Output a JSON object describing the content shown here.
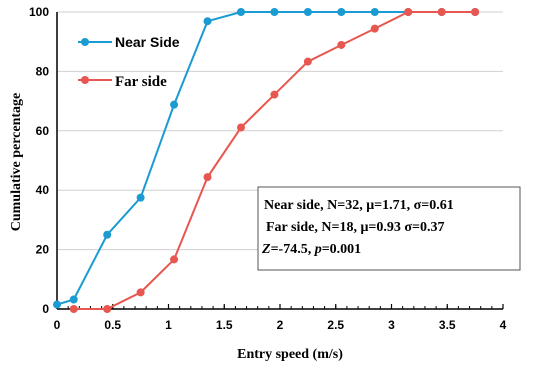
{
  "chart_data": {
    "type": "line",
    "xlabel": "Entry speed (m/s)",
    "ylabel": "Cumulative percentage",
    "xlim": [
      0,
      4
    ],
    "ylim": [
      0,
      100
    ],
    "x_ticks": [
      "0",
      "0.5",
      "1",
      "1.5",
      "2",
      "2.5",
      "3",
      "3.5",
      "4"
    ],
    "y_ticks": [
      "0",
      "20",
      "40",
      "60",
      "80",
      "100"
    ],
    "grid": "horizontal",
    "legend_position": "top-left",
    "series": [
      {
        "name": "Near Side",
        "color": "#1a9bd1",
        "x": [
          0.0,
          0.15,
          0.45,
          0.75,
          1.05,
          1.35,
          1.65,
          1.95,
          2.25,
          2.55,
          2.85,
          3.15,
          3.45,
          3.75
        ],
        "y": [
          1.5,
          3.2,
          25.0,
          37.5,
          68.8,
          96.9,
          100,
          100,
          100,
          100,
          100,
          100,
          100,
          100
        ]
      },
      {
        "name": "Far side",
        "color": "#e8574f",
        "x": [
          0.15,
          0.45,
          0.75,
          1.05,
          1.35,
          1.65,
          1.95,
          2.25,
          2.55,
          2.85,
          3.15,
          3.45,
          3.75
        ],
        "y": [
          0,
          0,
          5.6,
          16.7,
          44.4,
          61.1,
          72.2,
          83.3,
          88.9,
          94.4,
          100,
          100,
          100
        ]
      }
    ],
    "annotation": {
      "line1": "Near side, N=32, μ=1.71, σ=0.61",
      "line2": "Far side, N=18, μ=0.93 σ=0.37",
      "line3_z_symbol": "Z",
      "line3_z_value": "=-74.5, ",
      "line3_p_symbol": "p",
      "line3_p_value": "=0.001"
    }
  }
}
